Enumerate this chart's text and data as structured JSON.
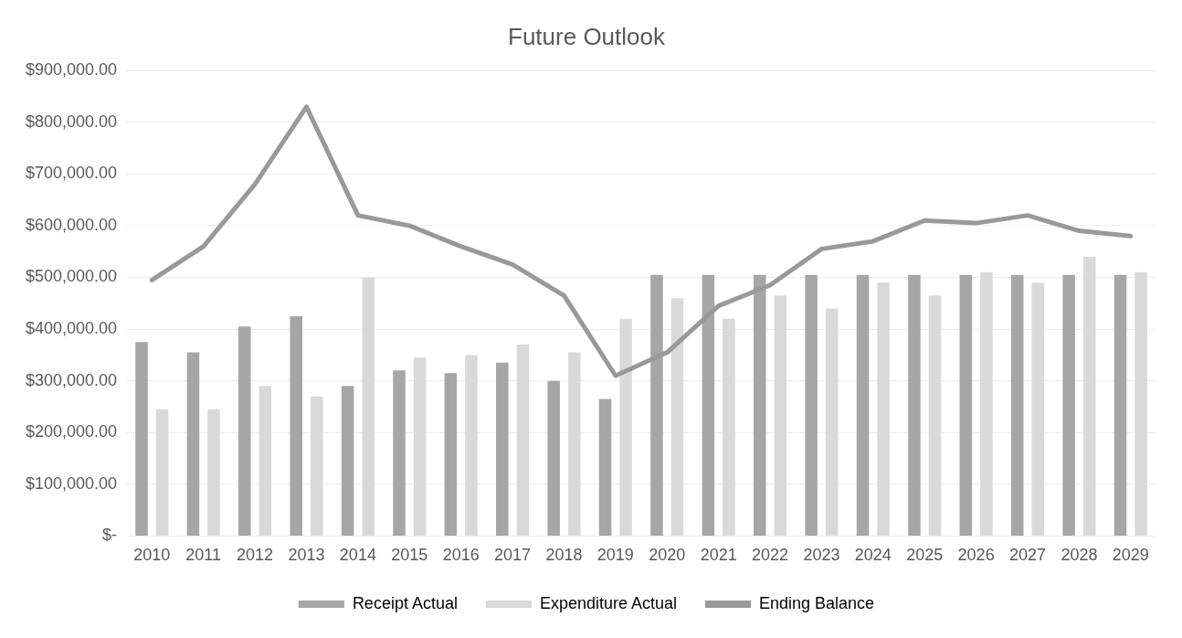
{
  "chart_data": {
    "type": "bar",
    "title": "Future Outlook",
    "categories": [
      "2010",
      "2011",
      "2012",
      "2013",
      "2014",
      "2015",
      "2016",
      "2017",
      "2018",
      "2019",
      "2020",
      "2021",
      "2022",
      "2023",
      "2024",
      "2025",
      "2026",
      "2027",
      "2028",
      "2029"
    ],
    "series": [
      {
        "name": "Receipt Actual",
        "color": "#a6a6a6",
        "values": [
          375000,
          355000,
          405000,
          425000,
          290000,
          320000,
          315000,
          335000,
          300000,
          265000,
          505000,
          505000,
          505000,
          505000,
          505000,
          505000,
          505000,
          505000,
          505000,
          505000
        ]
      },
      {
        "name": "Expenditure Actual",
        "color": "#d9d9d9",
        "values": [
          245000,
          245000,
          290000,
          270000,
          500000,
          345000,
          350000,
          370000,
          355000,
          420000,
          460000,
          420000,
          465000,
          440000,
          490000,
          465000,
          510000,
          490000,
          540000,
          510000
        ]
      },
      {
        "name": "Ending Balance",
        "type": "line",
        "color": "#999999",
        "values": [
          495000,
          560000,
          680000,
          830000,
          620000,
          600000,
          560000,
          525000,
          465000,
          310000,
          355000,
          445000,
          485000,
          555000,
          570000,
          610000,
          605000,
          620000,
          590000,
          580000
        ]
      }
    ],
    "ylim": [
      0,
      900000
    ],
    "yticks": [
      {
        "value": 0,
        "label": "$-"
      },
      {
        "value": 100000,
        "label": "$100,000.00"
      },
      {
        "value": 200000,
        "label": "$200,000.00"
      },
      {
        "value": 300000,
        "label": "$300,000.00"
      },
      {
        "value": 400000,
        "label": "$400,000.00"
      },
      {
        "value": 500000,
        "label": "$500,000.00"
      },
      {
        "value": 600000,
        "label": "$600,000.00"
      },
      {
        "value": 700000,
        "label": "$700,000.00"
      },
      {
        "value": 800000,
        "label": "$800,000.00"
      },
      {
        "value": 900000,
        "label": "$900,000.00"
      }
    ],
    "grid": "y",
    "legend": "bottom",
    "marker": "none",
    "line_style": "solid"
  }
}
